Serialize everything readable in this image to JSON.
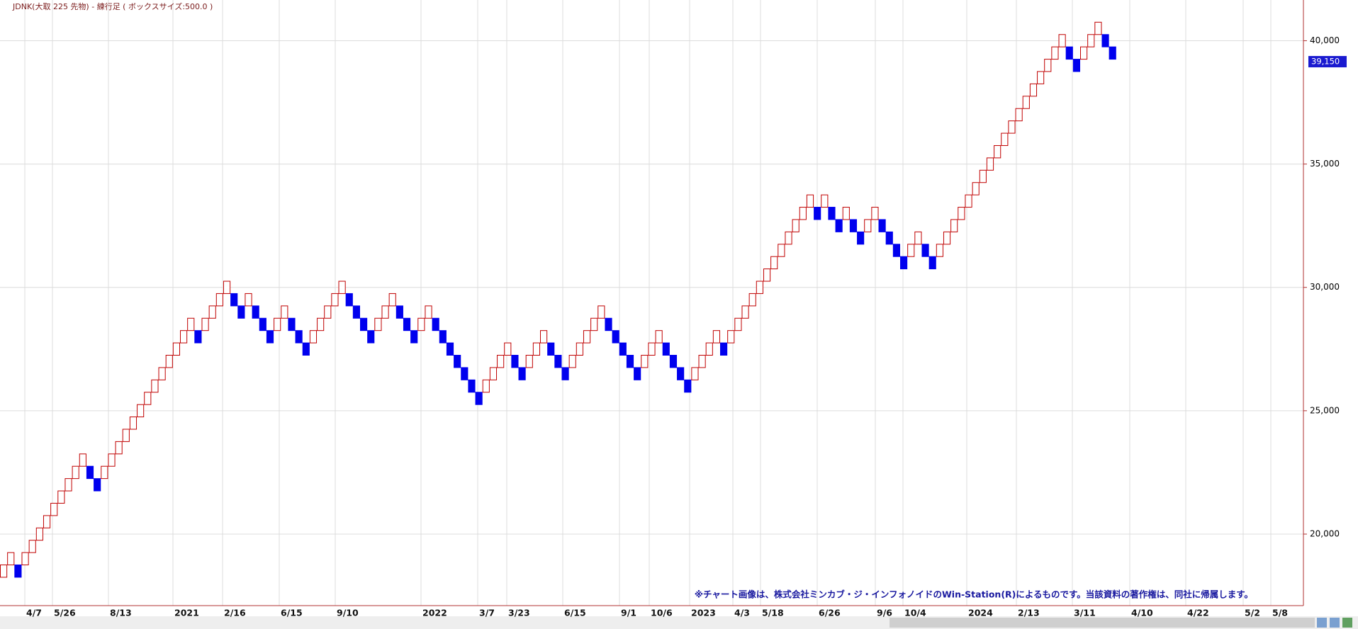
{
  "chart_data": {
    "type": "renko",
    "title": "JDNK(大取 225 先物) - 練行足 ( ボックスサイズ:500.0 )",
    "box_size": 500,
    "up_color": "#c00000",
    "down_color": "#0000ee",
    "values": [
      18750,
      19250,
      18250,
      19250,
      19750,
      20250,
      20750,
      21250,
      21750,
      22250,
      22750,
      23250,
      22250,
      21750,
      22750,
      23250,
      23750,
      24250,
      24750,
      25250,
      25750,
      26250,
      26750,
      27250,
      27750,
      28250,
      28750,
      27750,
      28750,
      29250,
      29750,
      30250,
      29250,
      28750,
      29750,
      28750,
      28250,
      27750,
      28750,
      29250,
      28250,
      27750,
      27250,
      28250,
      28750,
      29250,
      29750,
      30250,
      29250,
      28750,
      28250,
      27750,
      28750,
      29250,
      29750,
      28750,
      28250,
      27750,
      28750,
      29250,
      28250,
      27750,
      27250,
      26750,
      26250,
      25750,
      25250,
      26250,
      26750,
      27250,
      27750,
      26750,
      26250,
      27250,
      27750,
      28250,
      27250,
      26750,
      26250,
      27250,
      27750,
      28250,
      28750,
      29250,
      28250,
      27750,
      27250,
      26750,
      26250,
      27250,
      27750,
      28250,
      27250,
      26750,
      26250,
      25750,
      26750,
      27250,
      27750,
      28250,
      27250,
      28250,
      28750,
      29250,
      29750,
      30250,
      30750,
      31250,
      31750,
      32250,
      32750,
      33250,
      33750,
      32750,
      33750,
      32750,
      32250,
      33250,
      32250,
      31750,
      32750,
      33250,
      32250,
      31750,
      31250,
      30750,
      31750,
      32250,
      31250,
      30750,
      31750,
      32250,
      32750,
      33250,
      33750,
      34250,
      34750,
      35250,
      35750,
      36250,
      36750,
      37250,
      37750,
      38250,
      38750,
      39250,
      39750,
      40250,
      39250,
      38750,
      39750,
      40250,
      40750,
      39750,
      39250
    ],
    "ylim": [
      17100,
      41650
    ],
    "yticks": [
      {
        "value": 20000,
        "label": "20,000"
      },
      {
        "value": 25000,
        "label": "25,000"
      },
      {
        "value": 30000,
        "label": "30,000"
      },
      {
        "value": 35000,
        "label": "35,000"
      },
      {
        "value": 40000,
        "label": "40,000"
      }
    ],
    "last_price": {
      "value": 39150,
      "label": "39,150"
    },
    "x_labels": [
      "4/7",
      "5/26",
      "8/13",
      "2021",
      "2/16",
      "6/15",
      "9/10",
      "2022",
      "3/7",
      "3/23",
      "6/15",
      "9/1",
      "10/6",
      "2023",
      "4/3",
      "5/18",
      "6/26",
      "9/6",
      "10/4",
      "2024",
      "2/13",
      "3/11",
      "4/10",
      "4/22",
      "5/2",
      "5/8"
    ],
    "grid": true
  },
  "footer_note": "※チャート画像は、株式会社ミンカブ・ジ・インフォノイドのWin-Station(R)によるものです。当該資料の著作権は、同社に帰属します。"
}
